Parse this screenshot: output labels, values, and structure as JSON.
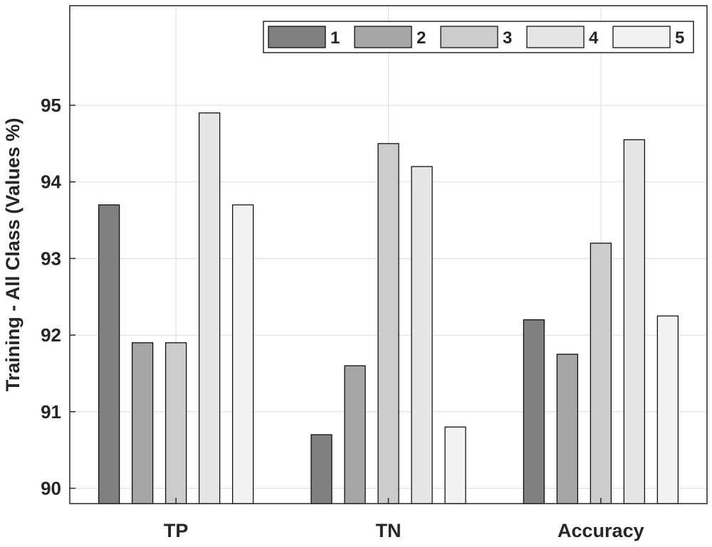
{
  "chart_data": {
    "type": "bar",
    "title": "",
    "xlabel": "",
    "ylabel": "Training - All Class (Values %)",
    "categories": [
      "TP",
      "TN",
      "Accuracy"
    ],
    "series": [
      {
        "name": "1",
        "values": [
          93.7,
          90.7,
          92.2
        ],
        "color": "#808080"
      },
      {
        "name": "2",
        "values": [
          91.9,
          91.6,
          91.75
        ],
        "color": "#a6a6a6"
      },
      {
        "name": "3",
        "values": [
          91.9,
          94.5,
          93.2
        ],
        "color": "#cccccc"
      },
      {
        "name": "4",
        "values": [
          94.9,
          94.2,
          94.55
        ],
        "color": "#e6e6e6"
      },
      {
        "name": "5",
        "values": [
          93.7,
          90.8,
          92.25
        ],
        "color": "#f2f2f2"
      }
    ],
    "ylim": [
      89.8,
      96.3
    ],
    "yticks": [
      "90",
      "91",
      "92",
      "93",
      "94",
      "95"
    ],
    "grid": true,
    "legend": {
      "placement": "top-right",
      "orientation": "horizontal"
    }
  }
}
